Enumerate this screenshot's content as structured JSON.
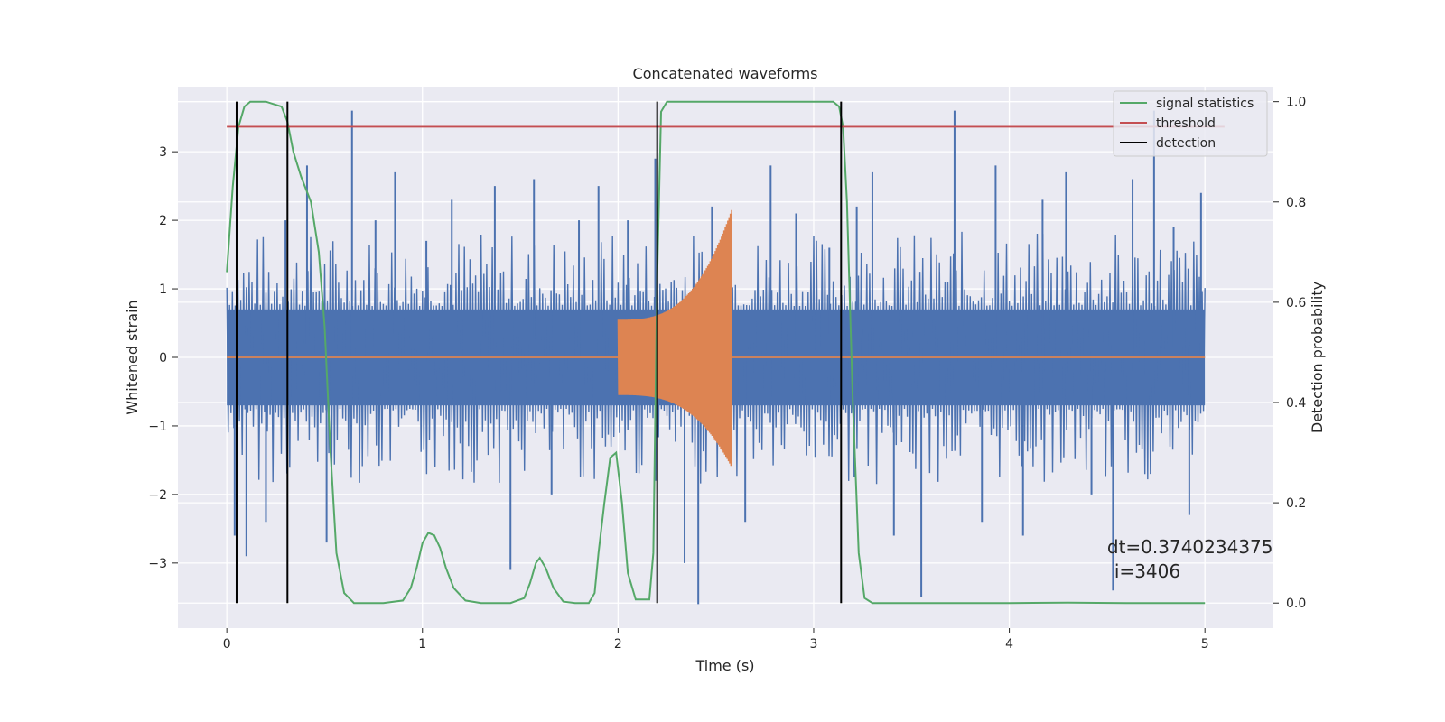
{
  "chart_data": {
    "type": "line",
    "title": "Concatenated waveforms",
    "xlabel": "Time (s)",
    "ylabel": "Whitened strain",
    "y2label": "Detection probability",
    "xlim": [
      -0.25,
      5.35
    ],
    "ylim": [
      -3.95,
      3.95
    ],
    "y2lim": [
      -0.05,
      1.03
    ],
    "x_ticks": [
      0,
      1,
      2,
      3,
      4,
      5
    ],
    "x_tick_labels": [
      "0",
      "1",
      "2",
      "3",
      "4",
      "5"
    ],
    "y_ticks": [
      -3,
      -2,
      -1,
      0,
      1,
      2,
      3
    ],
    "y_tick_labels": [
      "−3",
      "−2",
      "−1",
      "0",
      "1",
      "2",
      "3"
    ],
    "y2_ticks": [
      0.0,
      0.2,
      0.4,
      0.6,
      0.8,
      1.0
    ],
    "y2_tick_labels": [
      "0.0",
      "0.2",
      "0.4",
      "0.6",
      "0.8",
      "1.0"
    ],
    "grid": true,
    "legend_position": "top-right",
    "colors": {
      "background": "#eaeaf2",
      "grid": "#ffffff",
      "strain": "#4c72b0",
      "injection": "#dd8452",
      "statistics": "#55a868",
      "threshold": "#c44e52",
      "detection": "#000000"
    },
    "series": [
      {
        "name": "signal statistics",
        "axis": "right",
        "color": "#55a868",
        "x": [
          0,
          0.03,
          0.06,
          0.09,
          0.12,
          0.2,
          0.28,
          0.31,
          0.34,
          0.38,
          0.43,
          0.47,
          0.5,
          0.53,
          0.56,
          0.6,
          0.65,
          0.8,
          0.9,
          0.94,
          0.97,
          1.0,
          1.03,
          1.06,
          1.09,
          1.12,
          1.16,
          1.22,
          1.3,
          1.45,
          1.52,
          1.55,
          1.58,
          1.6,
          1.63,
          1.67,
          1.72,
          1.78,
          1.85,
          1.88,
          1.9,
          1.93,
          1.96,
          1.99,
          2.02,
          2.05,
          2.09,
          2.16,
          2.18,
          2.2,
          2.22,
          2.25,
          2.3,
          2.5,
          3.0,
          3.1,
          3.13,
          3.15,
          3.17,
          3.2,
          3.23,
          3.26,
          3.3,
          3.5,
          4.0,
          4.3,
          4.6,
          5.0
        ],
        "y": [
          0.66,
          0.83,
          0.95,
          0.99,
          1.0,
          1.0,
          0.99,
          0.96,
          0.9,
          0.85,
          0.8,
          0.7,
          0.55,
          0.3,
          0.1,
          0.02,
          0.0,
          0.0,
          0.005,
          0.03,
          0.07,
          0.12,
          0.14,
          0.135,
          0.11,
          0.07,
          0.03,
          0.005,
          0.0,
          0.0,
          0.01,
          0.04,
          0.08,
          0.09,
          0.07,
          0.03,
          0.003,
          0.0,
          0.0,
          0.02,
          0.1,
          0.2,
          0.29,
          0.3,
          0.2,
          0.06,
          0.007,
          0.007,
          0.1,
          0.65,
          0.98,
          1.0,
          1.0,
          1.0,
          1.0,
          1.0,
          0.99,
          0.95,
          0.8,
          0.4,
          0.1,
          0.01,
          0.0,
          0.0,
          0.0,
          0.001,
          0.0,
          0.0
        ]
      },
      {
        "name": "threshold",
        "axis": "right",
        "color": "#c44e52",
        "x": [
          0,
          5.1
        ],
        "y": [
          0.95,
          0.95
        ]
      },
      {
        "name": "detection",
        "axis": "right",
        "color": "#000000",
        "x": [
          0.05,
          0.31,
          2.2,
          3.14
        ],
        "y_range": [
          0.0,
          1.0
        ]
      }
    ],
    "strain": {
      "x_range": [
        0,
        5
      ],
      "band_min": -0.7,
      "band_max": 0.7,
      "spikes": [
        {
          "x": 0.04,
          "y": -2.6
        },
        {
          "x": 0.1,
          "y": -2.9
        },
        {
          "x": 0.2,
          "y": -2.4
        },
        {
          "x": 0.3,
          "y": 2.0
        },
        {
          "x": 0.41,
          "y": 2.8
        },
        {
          "x": 0.51,
          "y": -2.7
        },
        {
          "x": 0.64,
          "y": 3.6
        },
        {
          "x": 0.76,
          "y": 2.0
        },
        {
          "x": 0.86,
          "y": 2.7
        },
        {
          "x": 1.02,
          "y": 1.7
        },
        {
          "x": 1.15,
          "y": 2.3
        },
        {
          "x": 1.37,
          "y": 2.5
        },
        {
          "x": 1.45,
          "y": -3.1
        },
        {
          "x": 1.57,
          "y": 2.6
        },
        {
          "x": 1.66,
          "y": -2.0
        },
        {
          "x": 1.8,
          "y": 2.0
        },
        {
          "x": 1.9,
          "y": 2.5
        },
        {
          "x": 2.05,
          "y": 2.0
        },
        {
          "x": 2.19,
          "y": 2.9
        },
        {
          "x": 2.34,
          "y": -3.0
        },
        {
          "x": 2.41,
          "y": -3.6
        },
        {
          "x": 2.48,
          "y": 2.2
        },
        {
          "x": 2.65,
          "y": -2.4
        },
        {
          "x": 2.78,
          "y": 2.8
        },
        {
          "x": 2.91,
          "y": 2.1
        },
        {
          "x": 3.08,
          "y": 1.6
        },
        {
          "x": 3.22,
          "y": 2.2
        },
        {
          "x": 3.3,
          "y": 2.7
        },
        {
          "x": 3.41,
          "y": -2.6
        },
        {
          "x": 3.55,
          "y": -3.5
        },
        {
          "x": 3.72,
          "y": 3.6
        },
        {
          "x": 3.86,
          "y": -2.4
        },
        {
          "x": 3.93,
          "y": 2.8
        },
        {
          "x": 4.07,
          "y": -2.6
        },
        {
          "x": 4.17,
          "y": 2.3
        },
        {
          "x": 4.29,
          "y": 2.7
        },
        {
          "x": 4.42,
          "y": -2.0
        },
        {
          "x": 4.53,
          "y": -3.4
        },
        {
          "x": 4.63,
          "y": 2.6
        },
        {
          "x": 4.74,
          "y": 3.6
        },
        {
          "x": 4.84,
          "y": 1.9
        },
        {
          "x": 4.92,
          "y": -2.3
        },
        {
          "x": 4.98,
          "y": 2.4
        }
      ]
    },
    "injection": {
      "flat_x": [
        0,
        5
      ],
      "burst_start": 2.0,
      "burst_end": 2.58,
      "amp_start": 0.55,
      "amp_end_top": 2.15,
      "amp_end_bottom": -1.6
    },
    "annotation": {
      "dt_text": "dt=0.3740234375",
      "i_text": "i=3406",
      "x": 4.5,
      "y2": 0.11
    }
  }
}
